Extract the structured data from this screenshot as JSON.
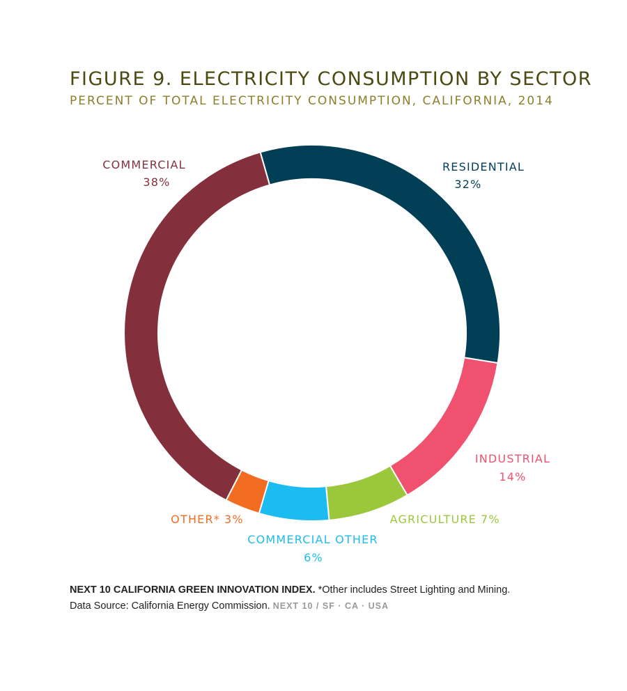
{
  "chart_data": {
    "type": "pie",
    "style": "donut",
    "title": "FIGURE 9. ELECTRICITY CONSUMPTION BY SECTOR",
    "subtitle": "PERCENT OF TOTAL ELECTRICITY CONSUMPTION, CALIFORNIA, 2014",
    "slices": [
      {
        "label": "RESIDENTIAL",
        "value": 32,
        "value_label": "32%",
        "color": "#003f56"
      },
      {
        "label": "INDUSTRIAL",
        "value": 14,
        "value_label": "14%",
        "color": "#f0516f"
      },
      {
        "label": "AGRICULTURE",
        "value": 7,
        "value_label": "7%",
        "color": "#9bc83b"
      },
      {
        "label": "COMMERCIAL OTHER",
        "value": 6,
        "value_label": "6%",
        "color": "#1cbcf0"
      },
      {
        "label": "OTHER*",
        "value": 3,
        "value_label": "3%",
        "color": "#f26d21"
      },
      {
        "label": "COMMERCIAL",
        "value": 38,
        "value_label": "38%",
        "color": "#84303c"
      }
    ]
  },
  "footer": {
    "source_bold": "NEXT 10 CALIFORNIA GREEN INNOVATION INDEX.",
    "note": " *Other includes Street Lighting and Mining.",
    "data_source": "Data Source: California Energy Commission.",
    "brand": "NEXT 10  /  SF · CA · USA"
  }
}
